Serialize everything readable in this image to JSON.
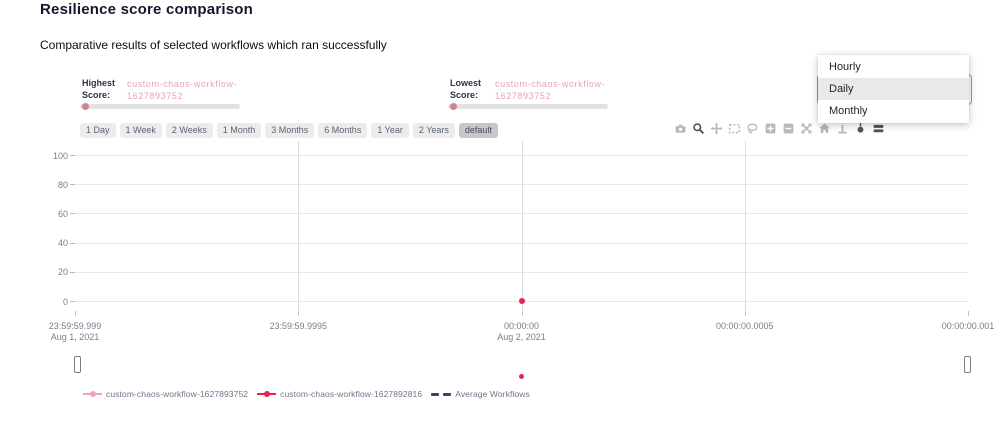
{
  "page": {
    "title": "Resilience score comparison",
    "subtitle": "Comparative results of selected workflows which ran successfully"
  },
  "scores": {
    "highest": {
      "label_line1": "Highest",
      "label_line2": "Score:",
      "value_line1": "custom-chaos-workflow-",
      "value_line2": "1627893752",
      "slider_value": 0
    },
    "lowest": {
      "label_line1": "Lowest",
      "label_line2": "Score:",
      "value_line1": "custom-chaos-workflow-",
      "value_line2": "1627893752",
      "slider_value": 0
    }
  },
  "interval_dropdown": {
    "options": [
      {
        "label": "Hourly",
        "selected": false
      },
      {
        "label": "Daily",
        "selected": true
      },
      {
        "label": "Monthly",
        "selected": false
      }
    ]
  },
  "range_buttons": [
    {
      "label": "1 Day",
      "active": false
    },
    {
      "label": "1 Week",
      "active": false
    },
    {
      "label": "2 Weeks",
      "active": false
    },
    {
      "label": "1 Month",
      "active": false
    },
    {
      "label": "3 Months",
      "active": false
    },
    {
      "label": "6 Months",
      "active": false
    },
    {
      "label": "1 Year",
      "active": false
    },
    {
      "label": "2 Years",
      "active": false
    },
    {
      "label": "default",
      "active": true
    }
  ],
  "modebar": {
    "icons": [
      {
        "name": "camera",
        "active": false
      },
      {
        "name": "zoom",
        "active": true
      },
      {
        "name": "pan",
        "active": false
      },
      {
        "name": "box-select",
        "active": false
      },
      {
        "name": "lasso",
        "active": false
      },
      {
        "name": "zoom-in",
        "active": false
      },
      {
        "name": "zoom-out",
        "active": false
      },
      {
        "name": "autoscale",
        "active": false
      },
      {
        "name": "reset-axes",
        "active": false
      },
      {
        "name": "spikelines",
        "active": false
      },
      {
        "name": "hover-closest",
        "active": true
      },
      {
        "name": "hover-compare",
        "active": true
      }
    ]
  },
  "chart_data": {
    "type": "scatter",
    "title": "",
    "xlabel": "",
    "ylabel": "",
    "ylim": [
      0,
      100
    ],
    "grid": true,
    "legend_position": "bottom-left",
    "y_ticks": [
      100,
      80,
      60,
      40,
      20,
      0
    ],
    "x_ticks": [
      {
        "time": "23:59:59.999",
        "date": "Aug 1, 2021",
        "frac": 0
      },
      {
        "time": "23:59:59.9995",
        "date": "",
        "frac": 0.25
      },
      {
        "time": "00:00:00",
        "date": "Aug 2, 2021",
        "frac": 0.5
      },
      {
        "time": "00:00:00.0005",
        "date": "",
        "frac": 0.75
      },
      {
        "time": "00:00:00.001",
        "date": "",
        "frac": 1
      }
    ],
    "series": [
      {
        "name": "custom-chaos-workflow-1627893752",
        "color": "#f0a6b6",
        "marker": "line-dot",
        "points": []
      },
      {
        "name": "custom-chaos-workflow-1627892816",
        "color": "#e2274f",
        "marker": "line-dot",
        "points": [
          {
            "x": "Aug 2, 2021 00:00:00",
            "x_frac": 0.5,
            "y": 0
          }
        ]
      },
      {
        "name": "Average Workflows",
        "color": "#3b4070",
        "marker": "dash",
        "points": []
      }
    ]
  },
  "colors": {
    "accent_pink": "#e7a3b4",
    "series_crimson": "#e2274f",
    "series_light_pink": "#f0a6b6",
    "average_navy": "#3b4070"
  }
}
